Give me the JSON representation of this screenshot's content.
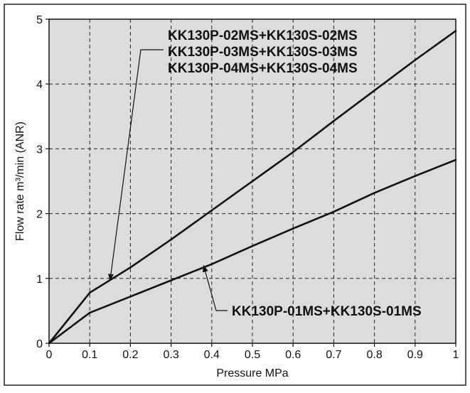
{
  "chart_data": {
    "type": "line",
    "title": "",
    "xlabel": "Pressure MPa",
    "ylabel": "Flow rate m³/min (ANR)",
    "xlim": [
      0,
      1
    ],
    "ylim": [
      0,
      5
    ],
    "x_ticks": [
      "0",
      "0.1",
      "0.2",
      "0.3",
      "0.4",
      "0.5",
      "0.6",
      "0.7",
      "0.8",
      "0.9",
      "1"
    ],
    "y_ticks": [
      "0",
      "1",
      "2",
      "3",
      "4",
      "5"
    ],
    "grid": true,
    "background": "#dcdcdc",
    "line_color": "#111111",
    "series": [
      {
        "name": "",
        "x": [
          0,
          0.1,
          0.2,
          0.3,
          0.4,
          0.5,
          0.6,
          0.7,
          0.8,
          0.9,
          1
        ],
        "values": [
          0,
          0.78,
          1.17,
          1.6,
          2.05,
          2.5,
          2.95,
          3.43,
          3.9,
          4.37,
          4.82
        ]
      },
      {
        "name": "",
        "x": [
          0,
          0.1,
          0.2,
          0.3,
          0.4,
          0.5,
          0.6,
          0.7,
          0.8,
          0.9,
          1
        ],
        "values": [
          0,
          0.47,
          0.72,
          0.97,
          1.22,
          1.5,
          1.77,
          2.03,
          2.32,
          2.58,
          2.83
        ]
      }
    ],
    "annotations": [
      {
        "lines": [
          "KK130P-02MS+KK130S-02MS",
          "KK130P-03MS+KK130S-03MS",
          "KK130P-04MS+KK130S-04MS"
        ],
        "arrow_target": [
          0.15,
          0.97
        ]
      },
      {
        "lines": [
          "KK130P-01MS+KK130S-01MS"
        ],
        "arrow_target": [
          0.38,
          1.2
        ]
      }
    ]
  }
}
